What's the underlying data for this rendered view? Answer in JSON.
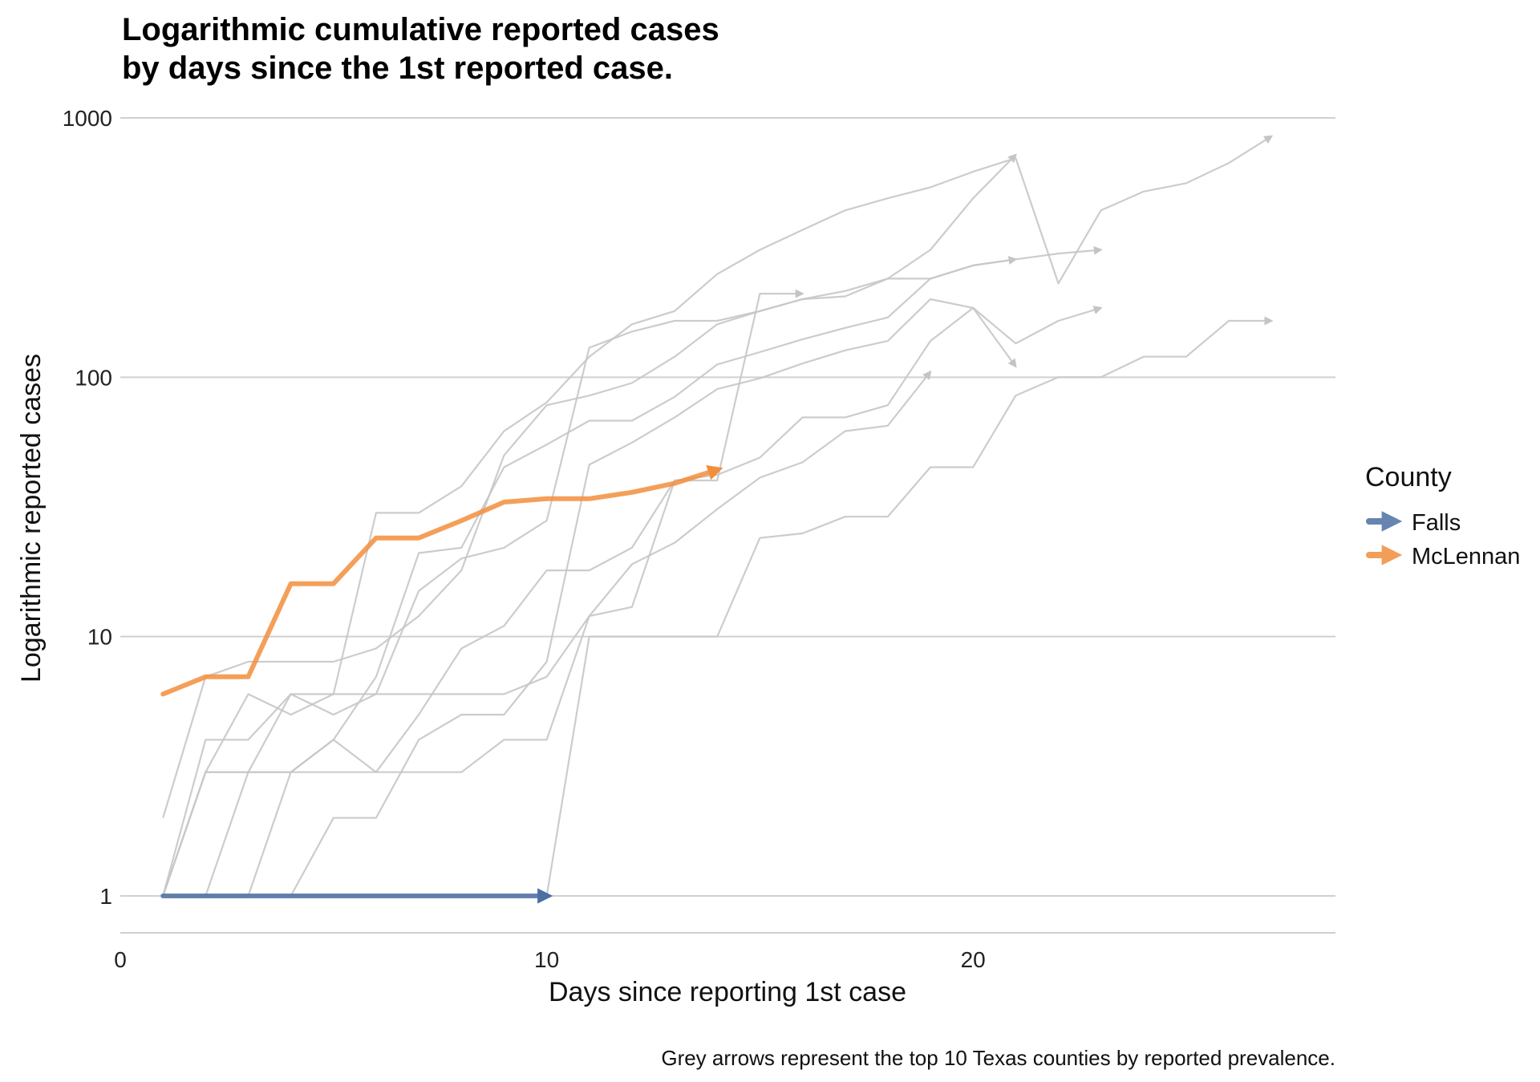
{
  "chart_data": {
    "type": "line",
    "title_lines": [
      "Logarithmic cumulative reported cases",
      "by days since the 1st reported case."
    ],
    "xlabel": "Days since reporting 1st case",
    "ylabel": "Logarithmic reported cases",
    "caption": "Grey arrows represent the top 10 Texas counties by reported prevalence.",
    "y_scale": "log10",
    "xlim": [
      0,
      28.5
    ],
    "ylim": [
      0.75,
      1000
    ],
    "x_ticks": [
      0,
      10,
      20
    ],
    "x_tick_labels": [
      "0",
      "10",
      "20"
    ],
    "y_ticks": [
      1,
      10,
      100,
      1000
    ],
    "y_tick_labels": [
      "1",
      "10",
      "100",
      "1000"
    ],
    "grid": "horizontal major lines",
    "legend": {
      "title": "County",
      "placement": "right",
      "entries": [
        {
          "name": "Falls",
          "color": "#4e6fa3"
        },
        {
          "name": "McLennan",
          "color": "#f28e3c"
        }
      ]
    },
    "series": [
      {
        "name": "Falls",
        "color": "#4e6fa3",
        "highlight": true,
        "x": [
          1,
          2,
          3,
          4,
          5,
          6,
          7,
          8,
          9,
          10
        ],
        "y": [
          1,
          1,
          1,
          1,
          1,
          1,
          1,
          1,
          1,
          1
        ]
      },
      {
        "name": "McLennan",
        "color": "#f28e3c",
        "highlight": true,
        "x": [
          1,
          2,
          3,
          4,
          5,
          6,
          7,
          8,
          9,
          10,
          11,
          12,
          13,
          14
        ],
        "y": [
          6,
          7,
          7,
          16,
          16,
          24,
          24,
          28,
          33,
          34,
          34,
          36,
          39,
          44
        ]
      },
      {
        "color": "#c8c8c8",
        "x": [
          1,
          2,
          3,
          4,
          5,
          6,
          7,
          8,
          9,
          10,
          11,
          12,
          13,
          14,
          15,
          16,
          17,
          18,
          19,
          20,
          21
        ],
        "y": [
          2,
          7,
          8,
          8,
          8,
          9,
          12,
          18,
          50,
          78,
          85,
          95,
          120,
          160,
          180,
          200,
          205,
          240,
          240,
          270,
          285
        ]
      },
      {
        "color": "#c8c8c8",
        "x": [
          1,
          2,
          3,
          4,
          5,
          6,
          7,
          8,
          9,
          10,
          11,
          12,
          13,
          14,
          15,
          16,
          17,
          18,
          19,
          20,
          21
        ],
        "y": [
          1,
          3,
          3,
          6,
          5,
          6,
          15,
          20,
          22,
          28,
          130,
          150,
          165,
          165,
          180,
          200,
          215,
          240,
          310,
          490,
          720
        ]
      },
      {
        "color": "#c8c8c8",
        "x": [
          1,
          2,
          3,
          4,
          5,
          6,
          7,
          8,
          9,
          10,
          11,
          12,
          13,
          14,
          15,
          16
        ],
        "y": [
          1,
          3,
          3,
          3,
          3,
          3,
          3,
          3,
          4,
          4,
          12,
          13,
          40,
          40,
          210,
          210
        ]
      },
      {
        "color": "#c8c8c8",
        "x": [
          1,
          2,
          3,
          4,
          5,
          6,
          7,
          8,
          9,
          10,
          11,
          12,
          13,
          14,
          15,
          16,
          17,
          18,
          19
        ],
        "y": [
          1,
          4,
          4,
          6,
          6,
          6,
          6,
          6,
          6,
          7,
          12,
          19,
          23,
          31,
          41,
          47,
          62,
          65,
          105
        ]
      },
      {
        "color": "#c8c8c8",
        "x": [
          1,
          2,
          3,
          4,
          5,
          6,
          7,
          8,
          9,
          10,
          11,
          12,
          13,
          14,
          15,
          16,
          17,
          18,
          19,
          20,
          21,
          22,
          23
        ],
        "y": [
          1,
          1,
          1,
          3,
          4,
          7,
          21,
          22,
          45,
          55,
          68,
          68,
          84,
          112,
          125,
          140,
          155,
          170,
          240,
          270,
          285,
          300,
          310
        ]
      },
      {
        "color": "#c8c8c8",
        "x": [
          1,
          2,
          3,
          4,
          5,
          6,
          7,
          8,
          9,
          10,
          11,
          12,
          13,
          14,
          15,
          16,
          17,
          18,
          19,
          20,
          21,
          22,
          23
        ],
        "y": [
          1,
          1,
          1,
          1,
          2,
          2,
          4,
          5,
          5,
          8,
          46,
          56,
          70,
          90,
          99,
          113,
          127,
          138,
          200,
          185,
          135,
          165,
          185
        ]
      },
      {
        "color": "#c8c8c8",
        "x": [
          1,
          2,
          3,
          4,
          5,
          6,
          7,
          8,
          9,
          10,
          11,
          12,
          13,
          14,
          15,
          16,
          17,
          18,
          19,
          20,
          21,
          22,
          23,
          24,
          25,
          26,
          27
        ],
        "y": [
          1,
          1,
          1,
          1,
          1,
          1,
          1,
          1,
          1,
          1,
          10,
          10,
          10,
          10,
          24,
          25,
          29,
          29,
          45,
          45,
          85,
          100,
          100,
          120,
          120,
          165,
          165
        ]
      },
      {
        "color": "#c8c8c8",
        "x": [
          1,
          2,
          3,
          4,
          5,
          6,
          7,
          8,
          9,
          10,
          11,
          12,
          13,
          14,
          15,
          16,
          17,
          18,
          19,
          20,
          21,
          22,
          23,
          24,
          25,
          26,
          27
        ],
        "y": [
          1,
          3,
          6,
          5,
          6,
          30,
          30,
          38,
          62,
          80,
          120,
          160,
          180,
          250,
          310,
          370,
          440,
          490,
          540,
          620,
          700,
          230,
          440,
          520,
          560,
          670,
          850
        ]
      },
      {
        "color": "#c8c8c8",
        "x": [
          1,
          2,
          3,
          4,
          5,
          6,
          7,
          8,
          9,
          10,
          11,
          12,
          13,
          14,
          15,
          16,
          17,
          18,
          19,
          20,
          21
        ],
        "y": [
          1,
          1,
          3,
          3,
          4,
          3,
          5,
          9,
          11,
          18,
          18,
          22,
          40,
          42,
          49,
          70,
          70,
          78,
          138,
          185,
          110
        ]
      }
    ]
  }
}
